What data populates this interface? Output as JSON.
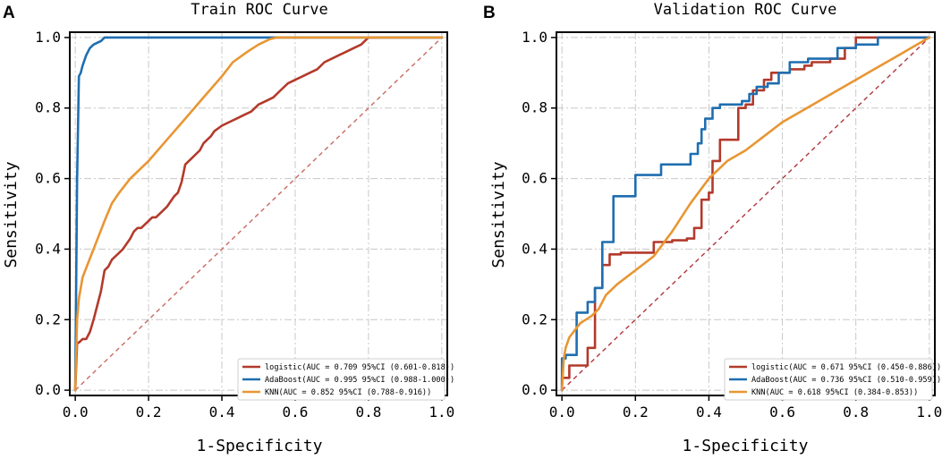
{
  "chart_data": [
    {
      "type": "line",
      "panel": "A",
      "title": "Train ROC Curve",
      "xlabel": "1-Specificity",
      "ylabel": "Sensitivity",
      "xlim": [
        0,
        1
      ],
      "ylim": [
        0,
        1
      ],
      "xticks": [
        "0.0",
        "0.2",
        "0.4",
        "0.6",
        "0.8",
        "1.0"
      ],
      "yticks": [
        "0.0",
        "0.2",
        "0.4",
        "0.6",
        "0.8",
        "1.0"
      ],
      "grid": true,
      "legend_position": "bottom-right",
      "diagonal": {
        "color": "#c96a5f",
        "style": "dashed"
      },
      "series": [
        {
          "name": "logistic",
          "label": "logistic(AUC = 0.709 95%CI (0.601-0.818))",
          "color": "#b33a2b",
          "x": [
            0,
            0.005,
            0.01,
            0.02,
            0.03,
            0.04,
            0.05,
            0.06,
            0.07,
            0.08,
            0.085,
            0.09,
            0.1,
            0.12,
            0.13,
            0.15,
            0.16,
            0.17,
            0.18,
            0.19,
            0.2,
            0.21,
            0.22,
            0.24,
            0.25,
            0.27,
            0.28,
            0.29,
            0.3,
            0.32,
            0.33,
            0.34,
            0.35,
            0.36,
            0.37,
            0.38,
            0.4,
            0.42,
            0.44,
            0.46,
            0.48,
            0.5,
            0.52,
            0.54,
            0.56,
            0.58,
            0.6,
            0.62,
            0.64,
            0.66,
            0.68,
            0.7,
            0.72,
            0.74,
            0.76,
            0.78,
            0.8,
            0.9,
            1.0
          ],
          "y": [
            0,
            0.135,
            0.135,
            0.145,
            0.145,
            0.165,
            0.2,
            0.24,
            0.28,
            0.34,
            0.345,
            0.35,
            0.37,
            0.39,
            0.4,
            0.43,
            0.45,
            0.46,
            0.46,
            0.47,
            0.48,
            0.49,
            0.49,
            0.51,
            0.52,
            0.55,
            0.56,
            0.59,
            0.64,
            0.66,
            0.67,
            0.68,
            0.7,
            0.71,
            0.72,
            0.735,
            0.75,
            0.76,
            0.77,
            0.78,
            0.79,
            0.81,
            0.82,
            0.83,
            0.85,
            0.87,
            0.88,
            0.89,
            0.9,
            0.91,
            0.93,
            0.94,
            0.95,
            0.96,
            0.97,
            0.98,
            1.0,
            1.0,
            1.0
          ]
        },
        {
          "name": "AdaBoost",
          "label": "AdaBoost(AUC = 0.995 95%CI (0.988-1.000))",
          "color": "#1f6eb0",
          "x": [
            0,
            0.005,
            0.01,
            0.015,
            0.02,
            0.03,
            0.04,
            0.05,
            0.06,
            0.07,
            0.08,
            1.0
          ],
          "y": [
            0,
            0.6,
            0.89,
            0.9,
            0.92,
            0.95,
            0.97,
            0.98,
            0.985,
            0.99,
            1.0,
            1.0
          ],
          "monotone_step": true
        },
        {
          "name": "KNN",
          "label": "KNN(AUC = 0.852 95%CI (0.788-0.916))",
          "color": "#e89633",
          "x": [
            0,
            0.005,
            0.01,
            0.02,
            0.05,
            0.08,
            0.1,
            0.12,
            0.15,
            0.2,
            0.25,
            0.3,
            0.35,
            0.4,
            0.43,
            0.47,
            0.5,
            0.53,
            0.55,
            0.6,
            0.7,
            0.8,
            0.9,
            1.0
          ],
          "y": [
            0,
            0.2,
            0.26,
            0.32,
            0.4,
            0.48,
            0.53,
            0.56,
            0.6,
            0.65,
            0.71,
            0.77,
            0.83,
            0.89,
            0.93,
            0.96,
            0.98,
            0.995,
            1.0,
            1.0,
            1.0,
            1.0,
            1.0,
            1.0
          ]
        }
      ]
    },
    {
      "type": "line",
      "panel": "B",
      "title": "Validation ROC Curve",
      "xlabel": "1-Specificity",
      "ylabel": "Sensitivity",
      "xlim": [
        0,
        1
      ],
      "ylim": [
        0,
        1
      ],
      "xticks": [
        "0.0",
        "0.2",
        "0.4",
        "0.6",
        "0.8",
        "1.0"
      ],
      "yticks": [
        "0.0",
        "0.2",
        "0.4",
        "0.6",
        "0.8",
        "1.0"
      ],
      "grid": true,
      "legend_position": "bottom-right",
      "diagonal": {
        "color": "#b0343c",
        "style": "dashed"
      },
      "series": [
        {
          "name": "logistic",
          "label": "logistic(AUC = 0.671 95%CI (0.450-0.886))",
          "color": "#b33a2b",
          "x": [
            0,
            0,
            0.02,
            0.02,
            0.07,
            0.07,
            0.09,
            0.09,
            0.11,
            0.11,
            0.13,
            0.13,
            0.16,
            0.16,
            0.18,
            0.18,
            0.25,
            0.25,
            0.3,
            0.3,
            0.34,
            0.34,
            0.36,
            0.36,
            0.38,
            0.38,
            0.4,
            0.4,
            0.41,
            0.41,
            0.43,
            0.43,
            0.48,
            0.48,
            0.5,
            0.5,
            0.52,
            0.52,
            0.55,
            0.55,
            0.57,
            0.57,
            0.62,
            0.62,
            0.66,
            0.66,
            0.68,
            0.68,
            0.73,
            0.73,
            0.77,
            0.77,
            0.8,
            0.8,
            1.0
          ],
          "y": [
            0,
            0.035,
            0.035,
            0.07,
            0.07,
            0.12,
            0.12,
            0.29,
            0.29,
            0.355,
            0.355,
            0.385,
            0.385,
            0.39,
            0.39,
            0.39,
            0.39,
            0.42,
            0.42,
            0.425,
            0.425,
            0.43,
            0.43,
            0.46,
            0.46,
            0.54,
            0.54,
            0.56,
            0.56,
            0.65,
            0.65,
            0.71,
            0.71,
            0.8,
            0.8,
            0.81,
            0.81,
            0.85,
            0.85,
            0.88,
            0.88,
            0.9,
            0.9,
            0.91,
            0.91,
            0.92,
            0.92,
            0.93,
            0.93,
            0.94,
            0.94,
            0.97,
            0.97,
            1.0,
            1.0
          ]
        },
        {
          "name": "AdaBoost",
          "label": "AdaBoost(AUC = 0.736 95%CI (0.510-0.959))",
          "color": "#1f6eb0",
          "x": [
            0,
            0,
            0.01,
            0.01,
            0.04,
            0.04,
            0.07,
            0.07,
            0.09,
            0.09,
            0.11,
            0.11,
            0.14,
            0.14,
            0.2,
            0.2,
            0.27,
            0.27,
            0.35,
            0.35,
            0.37,
            0.37,
            0.38,
            0.38,
            0.39,
            0.39,
            0.41,
            0.41,
            0.43,
            0.43,
            0.45,
            0.45,
            0.49,
            0.49,
            0.51,
            0.51,
            0.53,
            0.53,
            0.56,
            0.56,
            0.59,
            0.59,
            0.62,
            0.62,
            0.67,
            0.67,
            0.75,
            0.75,
            0.8,
            0.8,
            0.86,
            0.86,
            1.0
          ],
          "y": [
            0,
            0.09,
            0.09,
            0.1,
            0.1,
            0.22,
            0.22,
            0.25,
            0.25,
            0.29,
            0.29,
            0.42,
            0.42,
            0.55,
            0.55,
            0.61,
            0.61,
            0.64,
            0.64,
            0.67,
            0.67,
            0.7,
            0.7,
            0.74,
            0.74,
            0.77,
            0.77,
            0.8,
            0.8,
            0.81,
            0.81,
            0.81,
            0.81,
            0.82,
            0.82,
            0.84,
            0.84,
            0.86,
            0.86,
            0.87,
            0.87,
            0.9,
            0.9,
            0.93,
            0.93,
            0.94,
            0.94,
            0.97,
            0.97,
            0.98,
            0.98,
            1.0,
            1.0
          ]
        },
        {
          "name": "KNN",
          "label": "KNN(AUC = 0.618 95%CI (0.384-0.853))",
          "color": "#e89633",
          "x": [
            0,
            0.005,
            0.01,
            0.02,
            0.05,
            0.08,
            0.1,
            0.12,
            0.15,
            0.2,
            0.25,
            0.3,
            0.35,
            0.4,
            0.45,
            0.5,
            0.55,
            0.6,
            0.65,
            0.7,
            0.75,
            0.8,
            0.85,
            0.9,
            0.95,
            1.0
          ],
          "y": [
            0,
            0.09,
            0.12,
            0.15,
            0.19,
            0.21,
            0.23,
            0.27,
            0.3,
            0.34,
            0.38,
            0.45,
            0.53,
            0.6,
            0.65,
            0.68,
            0.72,
            0.76,
            0.79,
            0.82,
            0.85,
            0.88,
            0.91,
            0.94,
            0.97,
            1.0
          ]
        }
      ]
    }
  ]
}
